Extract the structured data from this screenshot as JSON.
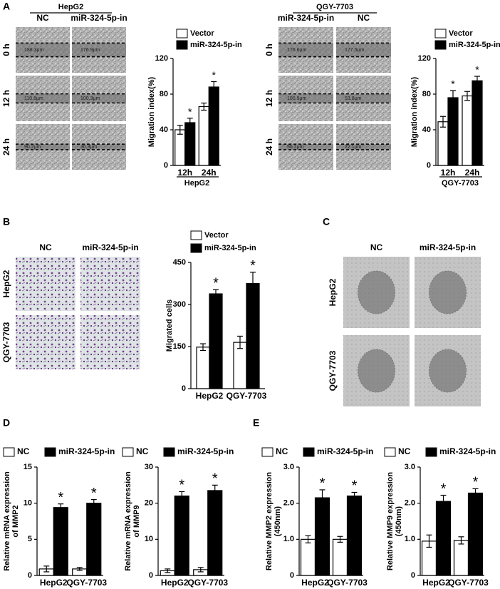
{
  "panel_labels": [
    "A",
    "B",
    "C",
    "D",
    "E"
  ],
  "image_grids": [
    {
      "title": "HepG2",
      "columns": [
        "NC",
        "miR-324-5p-in"
      ],
      "rows": [
        "0 h",
        "12 h",
        "24 h"
      ],
      "measurements": [
        [
          "188.3μm",
          "176.9μm"
        ],
        [
          "110.6μm",
          "100.3μm"
        ],
        [
          "90.2μm",
          "30.3μm"
        ]
      ]
    },
    {
      "title": "QGY-7703",
      "columns": [
        "miR-324-5p-in",
        "NC"
      ],
      "rows": [
        "0 h",
        "12 h",
        "24 h"
      ],
      "measurements": [
        [
          "176.6μm",
          "177.5μm"
        ],
        [
          "100.9μm",
          "53.8μm"
        ],
        [
          "56.2μm",
          "22.1μm"
        ]
      ]
    },
    {
      "columns": [
        "NC",
        "miR-324-5p-in"
      ],
      "rows": [
        "HepG2",
        "QGY-7703"
      ]
    },
    {
      "columns": [
        "NC",
        "miR-324-5p-in"
      ],
      "rows": [
        "HepG2",
        "QGY-7703"
      ]
    }
  ],
  "chart_data": [
    {
      "type": "bar",
      "ylabel": [
        "Migration index(%)"
      ],
      "categories": [
        "12h",
        "24h"
      ],
      "group_label": "HepG2",
      "ylim": [
        0,
        120
      ],
      "yticks": [
        0,
        40,
        80,
        120
      ],
      "series": [
        {
          "name": "Vector",
          "color": "#ffffff",
          "values": [
            40,
            66
          ],
          "errors": [
            5,
            4
          ]
        },
        {
          "name": "miR-324-5p-in",
          "color": "#000000",
          "values": [
            48,
            88
          ],
          "errors": [
            5,
            6
          ],
          "significance": [
            "*",
            "*"
          ]
        }
      ]
    },
    {
      "type": "bar",
      "ylabel": [
        "Migration index(%)"
      ],
      "categories": [
        "12h",
        "24h"
      ],
      "group_label": "QGY-7703",
      "ylim": [
        0,
        120
      ],
      "yticks": [
        0,
        40,
        80,
        120
      ],
      "series": [
        {
          "name": "Vector",
          "color": "#ffffff",
          "values": [
            49,
            78
          ],
          "errors": [
            6,
            5
          ]
        },
        {
          "name": "miR-324-5p-in",
          "color": "#000000",
          "values": [
            76,
            95
          ],
          "errors": [
            8,
            5
          ],
          "significance": [
            "*",
            "*"
          ]
        }
      ]
    },
    {
      "type": "bar",
      "ylabel": [
        "Migrated cells"
      ],
      "categories": [
        "HepG2",
        "QGY-7703"
      ],
      "ylim": [
        0,
        450
      ],
      "yticks": [
        0,
        150,
        300,
        450
      ],
      "series": [
        {
          "name": "Vector",
          "color": "#ffffff",
          "values": [
            148,
            165
          ],
          "errors": [
            12,
            22
          ]
        },
        {
          "name": "miR-324-5p-in",
          "color": "#000000",
          "values": [
            338,
            375
          ],
          "errors": [
            15,
            40
          ],
          "significance": [
            "*",
            "*"
          ]
        }
      ]
    },
    {
      "type": "bar",
      "ylabel": [
        "Relative mRNA expression",
        "of MMP2"
      ],
      "categories": [
        "HepG2",
        "QGY-7703"
      ],
      "ylim": [
        0,
        15
      ],
      "yticks": [
        0,
        5,
        10,
        15
      ],
      "series": [
        {
          "name": "NC",
          "color": "#ffffff",
          "values": [
            0.9,
            0.9
          ],
          "errors": [
            0.4,
            0.2
          ]
        },
        {
          "name": "miR-324-5p-in",
          "color": "#000000",
          "values": [
            9.4,
            10
          ],
          "errors": [
            0.5,
            0.5
          ],
          "significance": [
            "*",
            "*"
          ]
        }
      ]
    },
    {
      "type": "bar",
      "ylabel": [
        "Relative mRNA expression",
        "of MMP9"
      ],
      "categories": [
        "HepG2",
        "QGY-7703"
      ],
      "ylim": [
        0,
        30
      ],
      "yticks": [
        0,
        10,
        20,
        30
      ],
      "series": [
        {
          "name": "NC",
          "color": "#ffffff",
          "values": [
            1.3,
            1.6
          ],
          "errors": [
            0.5,
            0.6
          ]
        },
        {
          "name": "miR-324-5p-in",
          "color": "#000000",
          "values": [
            22,
            23.5
          ],
          "errors": [
            1.2,
            1.5
          ],
          "significance": [
            "*",
            "*"
          ]
        }
      ]
    },
    {
      "type": "bar",
      "ylabel": [
        "Relative MMP2 expression",
        "(450nm)"
      ],
      "categories": [
        "HepG2",
        "QGY-7703"
      ],
      "ylim": [
        0,
        3
      ],
      "yticks": [
        0,
        {
          "value": 1,
          "label": "1.0"
        },
        {
          "value": 2,
          "label": "2.0"
        },
        {
          "value": 3,
          "label": "3.0"
        }
      ],
      "series": [
        {
          "name": "NC",
          "color": "#ffffff",
          "values": [
            1.0,
            1.0
          ],
          "errors": [
            0.1,
            0.08
          ]
        },
        {
          "name": "miR-324-5p-in",
          "color": "#000000",
          "values": [
            2.15,
            2.2
          ],
          "errors": [
            0.22,
            0.1
          ],
          "significance": [
            "*",
            "*"
          ]
        }
      ]
    },
    {
      "type": "bar",
      "ylabel": [
        "Relative MMP9 expression",
        "(450nm)"
      ],
      "categories": [
        "HepG2",
        "QGY-7703"
      ],
      "ylim": [
        0,
        3
      ],
      "yticks": [
        0,
        {
          "value": 1,
          "label": "1.0"
        },
        {
          "value": 2,
          "label": "2.0"
        },
        {
          "value": 3,
          "label": "3.0"
        }
      ],
      "series": [
        {
          "name": "NC",
          "color": "#ffffff",
          "values": [
            0.95,
            0.97
          ],
          "errors": [
            0.17,
            0.1
          ]
        },
        {
          "name": "miR-324-5p-in",
          "color": "#000000",
          "values": [
            2.05,
            2.28
          ],
          "errors": [
            0.17,
            0.12
          ],
          "significance": [
            "*",
            "*"
          ]
        }
      ]
    }
  ]
}
